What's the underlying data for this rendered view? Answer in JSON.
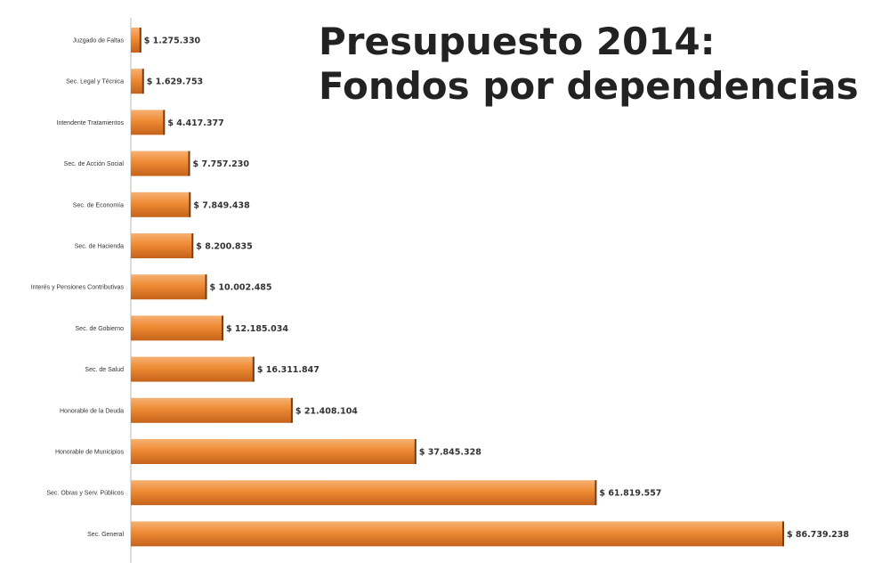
{
  "title_line1": "Presupuesto 2014:",
  "title_line2": "Fondos por dependencias",
  "colors": {
    "bar_top": "#f7b173",
    "bar_mid": "#ee8a33",
    "bar_bottom": "#c4621a",
    "bar_edge": "#7a3a0c"
  },
  "chart_data": {
    "type": "bar",
    "orientation": "horizontal",
    "categories": [
      "Juzgado de Faltas",
      "Sec. Legal y Técnica",
      "Intendente Tratamientos",
      "Sec. de Acción Social",
      "Sec. de Economía",
      "Sec. de Hacienda",
      "Interés y Pensiones Contributivas",
      "Sec. de Gobierno",
      "Sec. de Salud",
      "Honorable de la Deuda",
      "Honorable de Municipios",
      "Sec. Obras y Serv. Públicos",
      "Sec. General"
    ],
    "value_labels": [
      "$ 1.275.330",
      "$ 1.629.753",
      "$ 4.417.377",
      "$ 7.757.230",
      "$ 7.849.438",
      "$ 8.200.835",
      "$ 10.002.485",
      "$ 12.185.034",
      "$ 16.311.847",
      "$ 21.408.104",
      "$ 37.845.328",
      "$ 61.819.557",
      "$ 86.739.238"
    ],
    "values": [
      1275330,
      1629753,
      4417377,
      7757230,
      7849438,
      8200835,
      10002485,
      12185034,
      16311847,
      21408104,
      37845328,
      61819557,
      86739238
    ]
  }
}
